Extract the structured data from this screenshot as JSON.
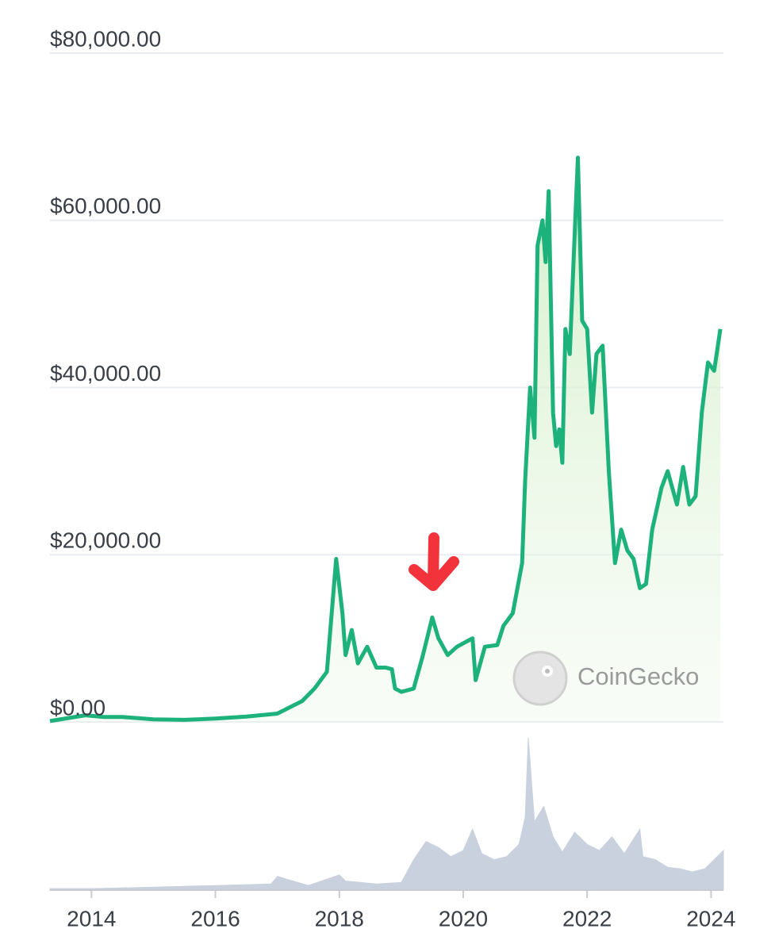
{
  "chart_data": [
    {
      "type": "line",
      "watermark": "CoinGecko",
      "color": "#1db27b",
      "grid": true,
      "xlim": [
        2013.33,
        2024.2
      ],
      "xticks": [
        2014,
        2016,
        2018,
        2020,
        2022,
        2024
      ],
      "ylim": [
        0,
        80000
      ],
      "yticks": [
        {
          "value": 0,
          "label": "$0.00"
        },
        {
          "value": 20000,
          "label": "$20,000.00"
        },
        {
          "value": 40000,
          "label": "$40,000.00"
        },
        {
          "value": 60000,
          "label": "$60,000.00"
        },
        {
          "value": 80000,
          "label": "$80,000.00"
        }
      ],
      "x": [
        2013.33,
        2013.9,
        2014.2,
        2014.5,
        2015.0,
        2015.5,
        2016.0,
        2016.5,
        2017.0,
        2017.4,
        2017.6,
        2017.8,
        2017.95,
        2018.05,
        2018.1,
        2018.2,
        2018.3,
        2018.45,
        2018.6,
        2018.75,
        2018.85,
        2018.9,
        2019.0,
        2019.2,
        2019.35,
        2019.5,
        2019.6,
        2019.75,
        2019.9,
        2020.15,
        2020.2,
        2020.35,
        2020.55,
        2020.65,
        2020.8,
        2020.95,
        2021.0,
        2021.08,
        2021.15,
        2021.2,
        2021.28,
        2021.33,
        2021.38,
        2021.45,
        2021.5,
        2021.55,
        2021.6,
        2021.65,
        2021.72,
        2021.78,
        2021.85,
        2021.92,
        2022.0,
        2022.08,
        2022.15,
        2022.25,
        2022.35,
        2022.45,
        2022.55,
        2022.65,
        2022.75,
        2022.85,
        2022.95,
        2023.05,
        2023.2,
        2023.3,
        2023.45,
        2023.55,
        2023.65,
        2023.75,
        2023.85,
        2023.95,
        2024.05,
        2024.15
      ],
      "values": [
        100,
        800,
        600,
        600,
        300,
        250,
        400,
        650,
        1000,
        2500,
        4000,
        6000,
        19500,
        13000,
        8000,
        11000,
        7000,
        9000,
        6500,
        6500,
        6300,
        4000,
        3600,
        4000,
        8000,
        12500,
        10000,
        8000,
        9000,
        10000,
        5000,
        9000,
        9200,
        11500,
        13000,
        19000,
        29000,
        40000,
        34000,
        57000,
        60000,
        55000,
        63500,
        37000,
        33000,
        35000,
        31000,
        47000,
        44000,
        55000,
        67500,
        48000,
        47000,
        37000,
        44000,
        45000,
        30000,
        19000,
        23000,
        20500,
        19500,
        16000,
        16500,
        23000,
        28000,
        30000,
        26000,
        30500,
        26000,
        27000,
        37000,
        43000,
        42000,
        47000
      ]
    },
    {
      "type": "area",
      "color": "#c9d1df",
      "xlim": [
        2013.33,
        2024.2
      ],
      "ylim": [
        0,
        100
      ],
      "x": [
        2013.33,
        2014.0,
        2015.0,
        2016.0,
        2016.9,
        2017.0,
        2017.5,
        2018.0,
        2018.1,
        2018.6,
        2019.0,
        2019.2,
        2019.4,
        2019.6,
        2019.8,
        2020.0,
        2020.15,
        2020.3,
        2020.5,
        2020.7,
        2020.9,
        2021.0,
        2021.05,
        2021.15,
        2021.3,
        2021.45,
        2021.6,
        2021.8,
        2022.0,
        2022.2,
        2022.4,
        2022.6,
        2022.85,
        2022.9,
        2023.1,
        2023.3,
        2023.5,
        2023.7,
        2023.9,
        2024.05,
        2024.2
      ],
      "values": [
        1,
        1,
        2,
        3,
        4,
        9,
        3,
        10,
        6,
        4,
        5,
        20,
        32,
        28,
        22,
        26,
        40,
        24,
        20,
        22,
        30,
        48,
        100,
        45,
        55,
        35,
        25,
        38,
        30,
        26,
        35,
        24,
        40,
        22,
        20,
        15,
        14,
        12,
        14,
        20,
        26
      ]
    }
  ]
}
